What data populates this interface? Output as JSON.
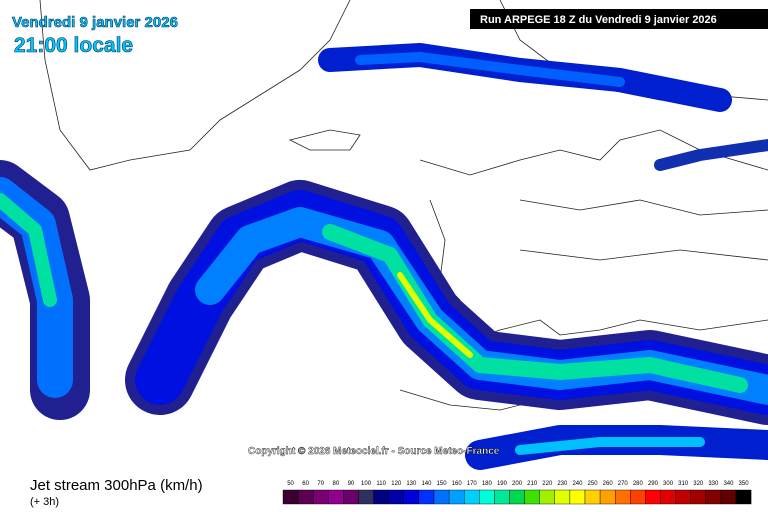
{
  "header": {
    "date": "Vendredi 9 janvier 2026",
    "time": "21:00 locale",
    "run": "Run ARPEGE 18 Z du Vendredi 9 janvier 2026"
  },
  "copyright": "Copyright © 2026 Meteociel.fr - Source Meteo-France",
  "footer": {
    "title": "Jet stream 300hPa (km/h)",
    "lead": "(+ 3h)"
  },
  "scale": {
    "values": [
      50,
      60,
      70,
      80,
      90,
      100,
      110,
      120,
      130,
      140,
      150,
      160,
      170,
      180,
      190,
      200,
      210,
      220,
      230,
      240,
      250,
      260,
      270,
      280,
      290,
      300,
      310,
      320,
      330,
      340,
      350
    ],
    "colors": [
      "#3c0030",
      "#5a0050",
      "#780070",
      "#900090",
      "#6a006a",
      "#303060",
      "#000080",
      "#0000a8",
      "#0000d8",
      "#0030ff",
      "#0070ff",
      "#00a0ff",
      "#00d0ff",
      "#00ffd8",
      "#00e898",
      "#00d850",
      "#40e000",
      "#a0f000",
      "#e0ff00",
      "#ffff00",
      "#ffd000",
      "#ffa000",
      "#ff7000",
      "#ff4000",
      "#ff0000",
      "#e00000",
      "#c00000",
      "#a00000",
      "#800000",
      "#600000",
      "#000000"
    ]
  }
}
